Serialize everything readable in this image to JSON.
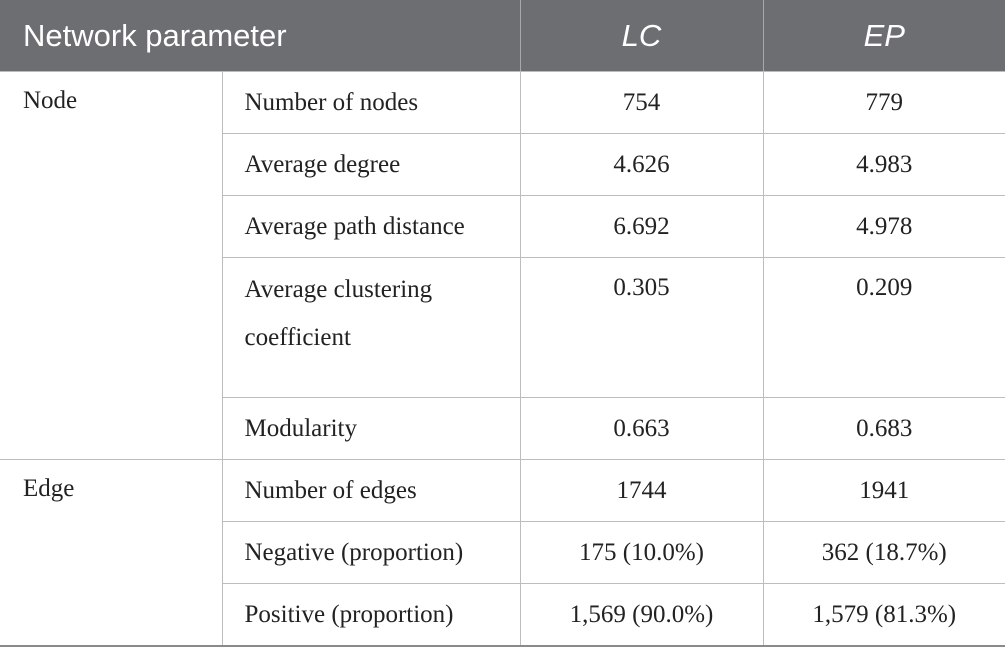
{
  "table": {
    "headers": [
      "Network parameter",
      "LC",
      "EP"
    ],
    "groups": [
      {
        "name": "Node",
        "rows": [
          {
            "param": "Number of nodes",
            "lc": "754",
            "ep": "779"
          },
          {
            "param": "Average degree",
            "lc": "4.626",
            "ep": "4.983"
          },
          {
            "param": "Average path distance",
            "lc": "6.692",
            "ep": "4.978"
          },
          {
            "param": "Average clustering coefficient",
            "lc": "0.305",
            "ep": "0.209"
          },
          {
            "param": "Modularity",
            "lc": "0.663",
            "ep": "0.683"
          }
        ]
      },
      {
        "name": "Edge",
        "rows": [
          {
            "param": "Number of edges",
            "lc": "1744",
            "ep": "1941"
          },
          {
            "param": "Negative (proportion)",
            "lc": "175 (10.0%)",
            "ep": "362 (18.7%)"
          },
          {
            "param": "Positive (proportion)",
            "lc": "1,569 (90.0%)",
            "ep": "1,579 (81.3%)"
          }
        ]
      }
    ]
  }
}
